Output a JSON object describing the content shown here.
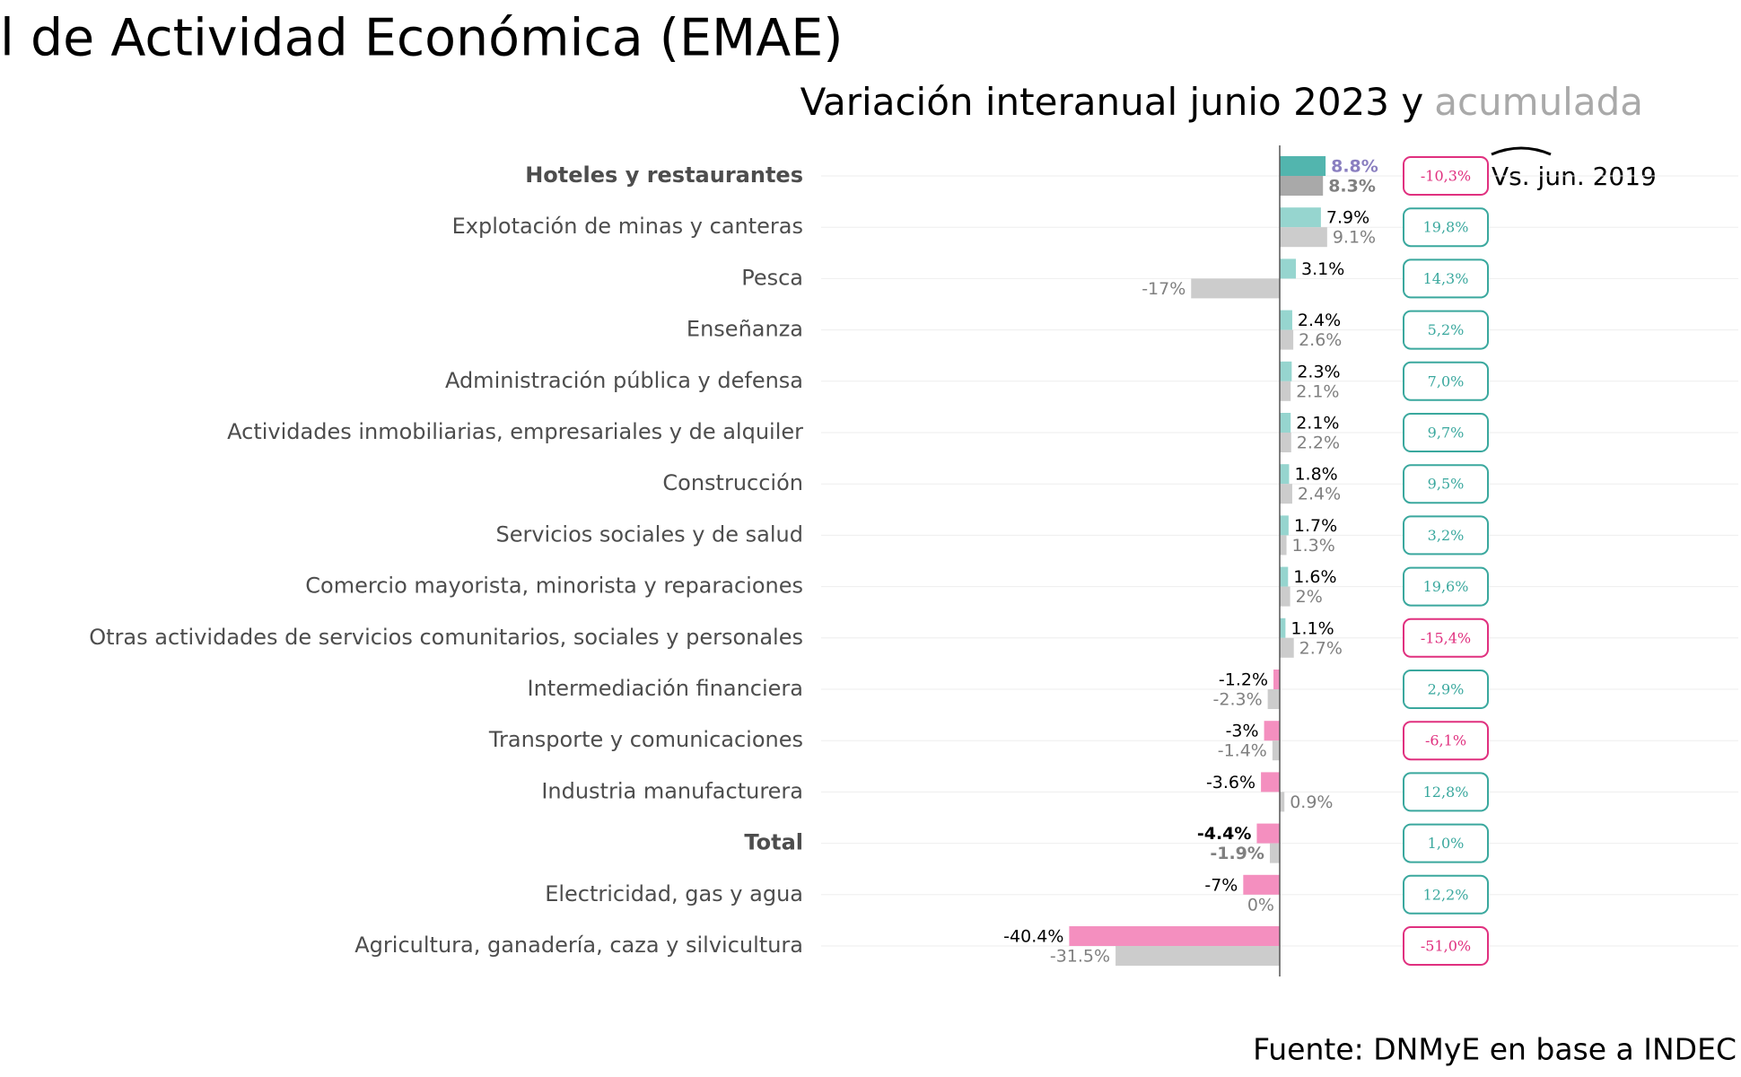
{
  "chart_data": {
    "type": "bar",
    "orientation": "horizontal",
    "title": "l de Actividad Económica (EMAE)",
    "subtitle": "Variación interanual junio 2023 y",
    "subtitle_highlight": "acumulada",
    "annotation": "Vs. jun. 2019",
    "source": "Fuente: DNMyE en base a INDEC",
    "categories": [
      "Hoteles y restaurantes",
      "Explotación de minas y canteras",
      "Pesca",
      "Enseñanza",
      "Administración pública y defensa",
      "Actividades inmobiliarias, empresariales y de alquiler",
      "Construcción",
      "Servicios sociales y de salud",
      "Comercio mayorista, minorista y reparaciones",
      "Otras actividades de servicios comunitarios, sociales y personales",
      "Intermediación financiera",
      "Transporte y comunicaciones",
      "Industria manufacturera",
      "Total",
      "Electricidad, gas y agua",
      "Agricultura, ganadería, caza y silvicultura"
    ],
    "series": [
      {
        "values": [
          8.8,
          7.9,
          3.1,
          2.4,
          2.3,
          2.1,
          1.8,
          1.7,
          1.6,
          1.1,
          -1.2,
          -3,
          -3.6,
          -4.4,
          -7,
          -40.4
        ],
        "value_labels": [
          "8.8%",
          "7.9%",
          "3.1%",
          "2.4%",
          "2.3%",
          "2.1%",
          "1.8%",
          "1.7%",
          "1.6%",
          "1.1%",
          "-1.2%",
          "-3%",
          "-3.6%",
          "-4.4%",
          "-7%",
          "-40.4%"
        ],
        "colors": [
          "#52b5ae",
          "#96d5cf",
          "#96d5cf",
          "#96d5cf",
          "#96d5cf",
          "#96d5cf",
          "#96d5cf",
          "#96d5cf",
          "#96d5cf",
          "#96d5cf",
          "#f48fbf",
          "#f48fbf",
          "#f48fbf",
          "#f48fbf",
          "#f48fbf",
          "#f48fbf"
        ]
      },
      {
        "values": [
          8.3,
          9.1,
          -17,
          2.6,
          2.1,
          2.2,
          2.4,
          1.3,
          2,
          2.7,
          -2.3,
          -1.4,
          0.9,
          -1.9,
          0,
          -31.5
        ],
        "value_labels": [
          "8.3%",
          "9.1%",
          "-17%",
          "2.6%",
          "2.1%",
          "2.2%",
          "2.4%",
          "1.3%",
          "2%",
          "2.7%",
          "-2.3%",
          "-1.4%",
          "0.9%",
          "-1.9%",
          "0%",
          "-31.5%"
        ],
        "colors": [
          "#a9a9a9",
          "#cccccc",
          "#cccccc",
          "#cccccc",
          "#cccccc",
          "#cccccc",
          "#cccccc",
          "#cccccc",
          "#cccccc",
          "#cccccc",
          "#cccccc",
          "#cccccc",
          "#cccccc",
          "#cccccc",
          "#cccccc",
          "#cccccc"
        ]
      },
      {
        "values": [
          -10.3,
          19.8,
          14.3,
          5.2,
          7.0,
          9.7,
          9.5,
          3.2,
          19.6,
          -15.4,
          2.9,
          -6.1,
          12.8,
          1.0,
          12.2,
          -51.0
        ],
        "value_labels": [
          "-10,3%",
          "19,8%",
          "14,3%",
          "5,2%",
          "7,0%",
          "9,7%",
          "9,5%",
          "3,2%",
          "19,6%",
          "-15,4%",
          "2,9%",
          "-6,1%",
          "12,8%",
          "1,0%",
          "12,2%",
          "-51,0%"
        ],
        "positive_color": "#3aa89e",
        "negative_color": "#e0307f"
      }
    ],
    "xlim": [
      -88,
      88
    ],
    "grid": true
  }
}
